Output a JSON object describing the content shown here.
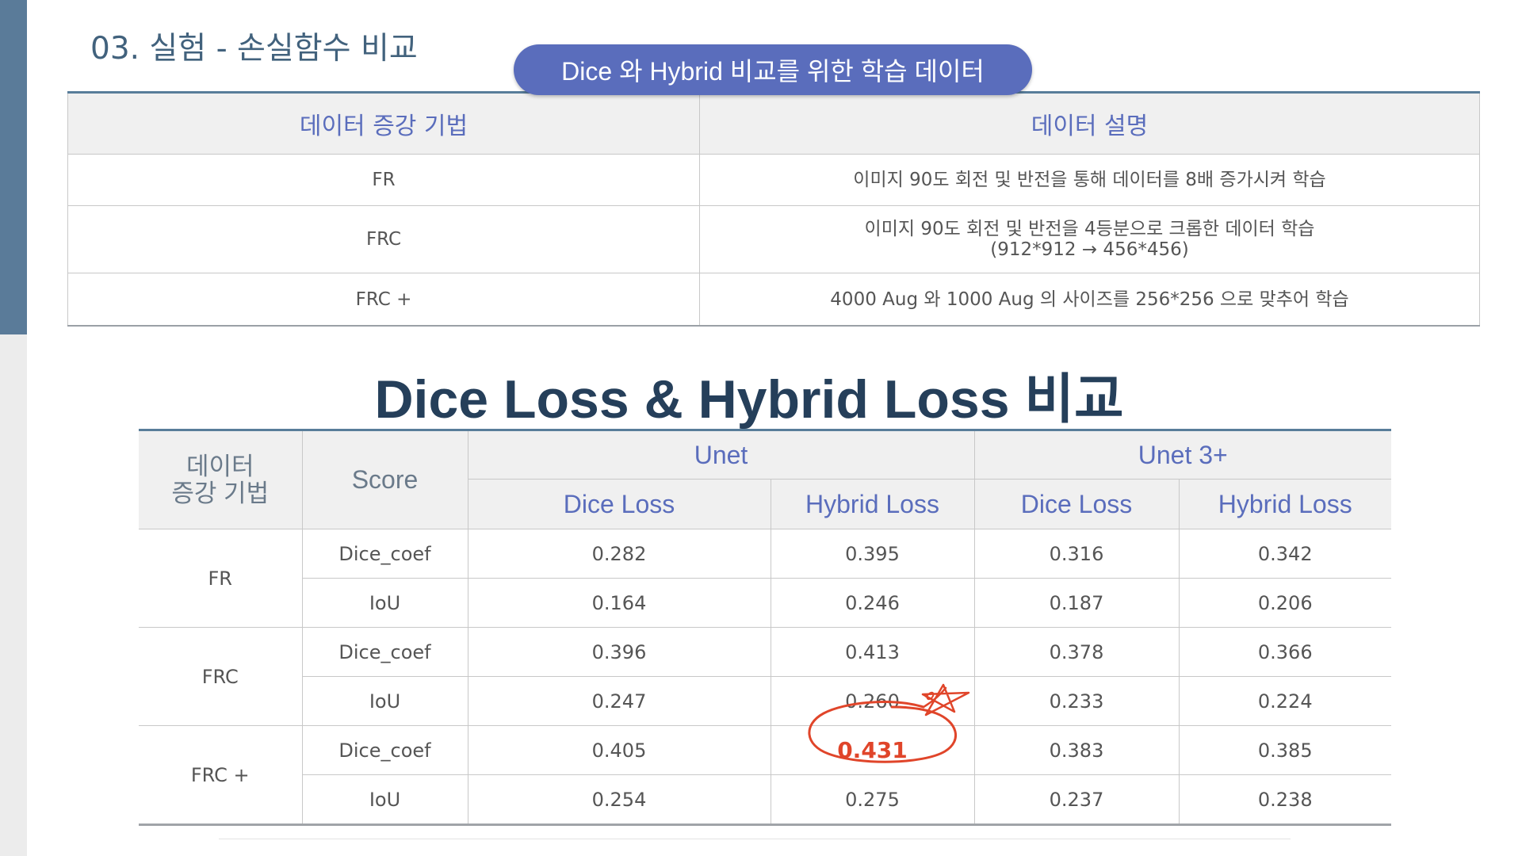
{
  "section_title": "03. 실험 - 손실함수 비교",
  "pill_label": "Dice 와 Hybrid 비교를 위한 학습 데이터",
  "augment_table": {
    "headers": [
      "데이터 증강 기법",
      "데이터 설명"
    ],
    "rows": [
      {
        "method": "FR",
        "desc_line1": "이미지 90도 회전 및 반전을 통해 데이터를 8배 증가시켜 학습",
        "desc_line2": ""
      },
      {
        "method": "FRC",
        "desc_line1": "이미지 90도 회전 및 반전을 4등분으로 크롭한 데이터 학습",
        "desc_line2": "(912*912 → 456*456)"
      },
      {
        "method": "FRC +",
        "desc_line1": "4000 Aug 와 1000 Aug 의 사이즈를 256*256 으로 맞추어 학습",
        "desc_line2": ""
      }
    ]
  },
  "comparison_title": "Dice Loss & Hybrid Loss 비교",
  "results_table": {
    "head_data_line1": "데이터",
    "head_data_line2": "증강 기법",
    "head_score": "Score",
    "groups": [
      "Unet",
      "Unet 3+"
    ],
    "subheaders": [
      "Dice Loss",
      "Hybrid Loss",
      "Dice Loss",
      "Hybrid Loss"
    ],
    "rows": [
      {
        "method": "FR",
        "score": "Dice_coef",
        "values": [
          "0.282",
          "0.395",
          "0.316",
          "0.342"
        ]
      },
      {
        "method": "FR",
        "score": "IoU",
        "values": [
          "0.164",
          "0.246",
          "0.187",
          "0.206"
        ]
      },
      {
        "method": "FRC",
        "score": "Dice_coef",
        "values": [
          "0.396",
          "0.413",
          "0.378",
          "0.366"
        ]
      },
      {
        "method": "FRC",
        "score": "IoU",
        "values": [
          "0.247",
          "0.260",
          "0.233",
          "0.224"
        ]
      },
      {
        "method": "FRC +",
        "score": "Dice_coef",
        "values": [
          "0.405",
          "0.431",
          "0.383",
          "0.385"
        ]
      },
      {
        "method": "FRC +",
        "score": "IoU",
        "values": [
          "0.254",
          "0.275",
          "0.237",
          "0.238"
        ]
      }
    ],
    "highlight_color": "#e0452a"
  },
  "colors": {
    "accent_blue": "#5a6dbc",
    "title_dark": "#253f5a",
    "strip_blue": "#5a7b99",
    "header_bg": "#f0f0f0"
  },
  "annotations": {
    "circle_icon": "hand-drawn-circle",
    "star_icon": "hand-drawn-star"
  }
}
